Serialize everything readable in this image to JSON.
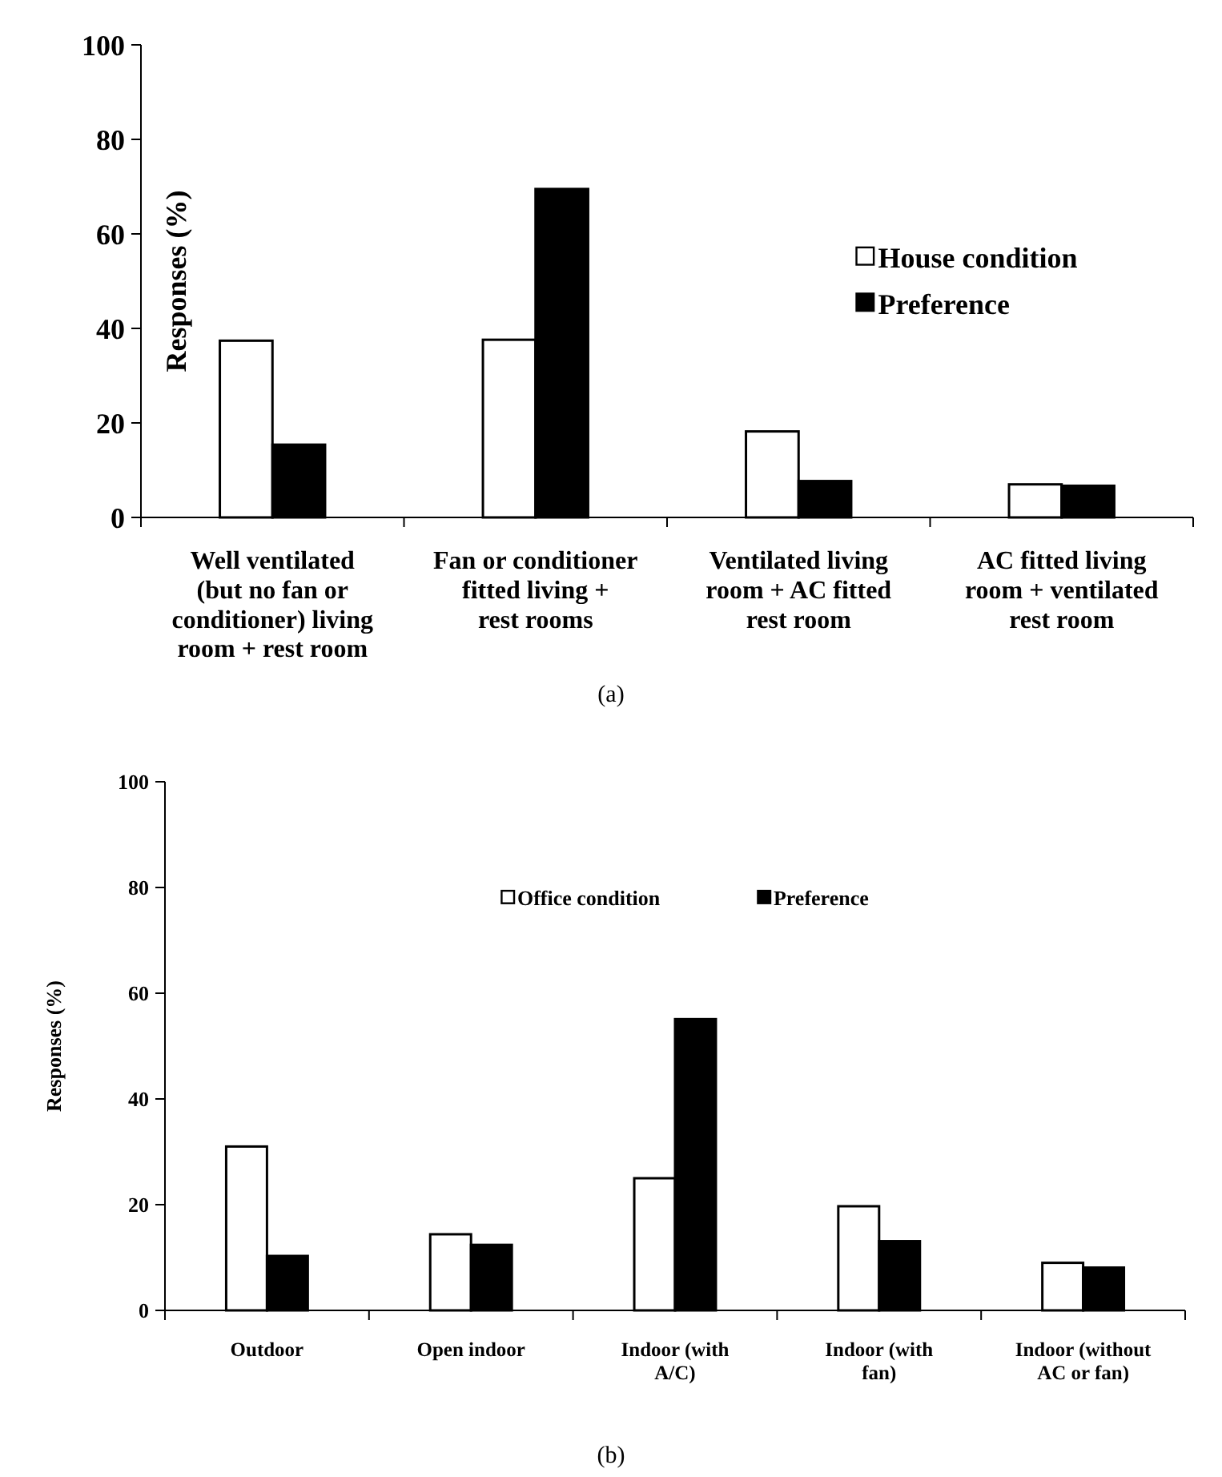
{
  "chart_data": [
    {
      "type": "bar",
      "ylabel": "Responses (%)",
      "categories": [
        "Well ventilated (but no fan or conditioner) living room + rest room",
        "Fan or conditioner fitted living + rest rooms",
        "Ventilated living room + AC fitted rest room",
        "AC fitted living room + ventilated rest room"
      ],
      "series": [
        {
          "name": "House condition",
          "color": "#ffffff",
          "values": [
            37.4,
            37.6,
            18.2,
            7.0
          ]
        },
        {
          "name": "Preference",
          "color": "#000000",
          "values": [
            15.4,
            69.5,
            7.7,
            6.7
          ]
        }
      ],
      "ylim": [
        0,
        100
      ],
      "yticks": [
        0,
        20,
        40,
        60,
        80,
        100
      ],
      "grid": false,
      "legend": "top right",
      "annotations": [
        "(a)"
      ]
    },
    {
      "type": "bar",
      "ylabel": "Responses (%)",
      "categories": [
        "Outdoor",
        "Open indoor",
        "Indoor (with A/C)",
        "Indoor (with fan)",
        "Indoor (without AC or fan)"
      ],
      "series": [
        {
          "name": "Office condition",
          "color": "#ffffff",
          "values": [
            31.0,
            14.4,
            25.0,
            19.7,
            9.0
          ]
        },
        {
          "name": "Preference",
          "color": "#000000",
          "values": [
            10.3,
            12.4,
            55.1,
            13.1,
            8.1
          ]
        }
      ],
      "ylim": [
        0,
        100
      ],
      "yticks": [
        0,
        20,
        40,
        60,
        80,
        100
      ],
      "grid": false,
      "legend": "top",
      "annotations": [
        "(b)"
      ]
    }
  ]
}
